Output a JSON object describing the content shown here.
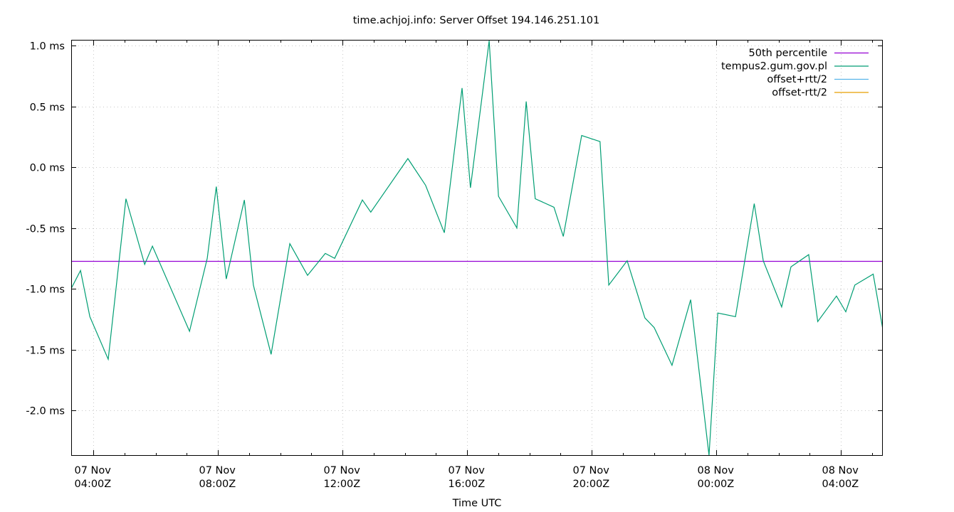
{
  "title": "time.achjoj.info: Server Offset 194.146.251.101",
  "xlabel": "Time UTC",
  "colors": {
    "median": "#9400d3",
    "offset": "#009e73",
    "offset_plus": "#56b4e9",
    "offset_minus": "#e69f00",
    "grid": "#c8c8c8",
    "axis": "#000000"
  },
  "legend": [
    {
      "label": "50th percentile",
      "color": "#9400d3"
    },
    {
      "label": "tempus2.gum.gov.pl",
      "color": "#009e73"
    },
    {
      "label": "offset+rtt/2",
      "color": "#56b4e9"
    },
    {
      "label": "offset-rtt/2",
      "color": "#e69f00"
    }
  ],
  "chart_data": {
    "type": "line",
    "title": "time.achjoj.info: Server Offset 194.146.251.101",
    "xlabel": "Time UTC",
    "ylabel": "",
    "ylim": [
      -2.4,
      1.05
    ],
    "y_unit": "ms",
    "grid": true,
    "legend_position": "top-right",
    "y_ticks": [
      {
        "value": 1.0,
        "label": "1.0 ms"
      },
      {
        "value": 0.5,
        "label": "0.5 ms"
      },
      {
        "value": 0.0,
        "label": "0.0 ms"
      },
      {
        "value": -0.5,
        "label": "-0.5 ms"
      },
      {
        "value": -1.0,
        "label": "-1.0 ms"
      },
      {
        "value": -1.5,
        "label": "-1.5 ms"
      },
      {
        "value": -2.0,
        "label": "-2.0 ms"
      }
    ],
    "x_range_hours": [
      3.3,
      29.35
    ],
    "x_ticks": [
      {
        "hour": 4,
        "line1": "07 Nov",
        "line2": "04:00Z"
      },
      {
        "hour": 8,
        "line1": "07 Nov",
        "line2": "08:00Z"
      },
      {
        "hour": 12,
        "line1": "07 Nov",
        "line2": "12:00Z"
      },
      {
        "hour": 16,
        "line1": "07 Nov",
        "line2": "16:00Z"
      },
      {
        "hour": 20,
        "line1": "07 Nov",
        "line2": "20:00Z"
      },
      {
        "hour": 24,
        "line1": "08 Nov",
        "line2": "00:00Z"
      },
      {
        "hour": 28,
        "line1": "08 Nov",
        "line2": "04:00Z"
      }
    ],
    "series": [
      {
        "name": "50th percentile",
        "color": "#9400d3",
        "constant": -0.77
      },
      {
        "name": "tempus2.gum.gov.pl",
        "color": "#009e73",
        "points": [
          [
            3.29,
            -1.0
          ],
          [
            3.59,
            -0.85
          ],
          [
            3.89,
            -1.23
          ],
          [
            4.48,
            -1.58
          ],
          [
            5.05,
            -0.26
          ],
          [
            5.65,
            -0.8
          ],
          [
            5.9,
            -0.65
          ],
          [
            7.09,
            -1.35
          ],
          [
            7.66,
            -0.75
          ],
          [
            7.95,
            -0.16
          ],
          [
            8.27,
            -0.92
          ],
          [
            8.85,
            -0.27
          ],
          [
            9.14,
            -0.97
          ],
          [
            9.71,
            -1.54
          ],
          [
            10.31,
            -0.63
          ],
          [
            10.88,
            -0.89
          ],
          [
            11.45,
            -0.71
          ],
          [
            11.75,
            -0.75
          ],
          [
            12.64,
            -0.27
          ],
          [
            12.91,
            -0.37
          ],
          [
            14.1,
            0.07
          ],
          [
            14.67,
            -0.15
          ],
          [
            15.27,
            -0.54
          ],
          [
            15.84,
            0.65
          ],
          [
            16.11,
            -0.17
          ],
          [
            16.71,
            1.04
          ],
          [
            17.01,
            -0.24
          ],
          [
            17.6,
            -0.5
          ],
          [
            17.9,
            0.54
          ],
          [
            18.19,
            -0.26
          ],
          [
            18.79,
            -0.33
          ],
          [
            19.09,
            -0.57
          ],
          [
            19.68,
            0.26
          ],
          [
            20.27,
            0.21
          ],
          [
            20.55,
            -0.97
          ],
          [
            21.14,
            -0.77
          ],
          [
            21.71,
            -1.24
          ],
          [
            22.01,
            -1.32
          ],
          [
            22.58,
            -1.63
          ],
          [
            23.18,
            -1.09
          ],
          [
            23.77,
            -2.37
          ],
          [
            24.05,
            -1.2
          ],
          [
            24.62,
            -1.23
          ],
          [
            25.22,
            -0.3
          ],
          [
            25.51,
            -0.77
          ],
          [
            26.1,
            -1.15
          ],
          [
            26.4,
            -0.82
          ],
          [
            26.97,
            -0.72
          ],
          [
            27.26,
            -1.27
          ],
          [
            27.86,
            -1.06
          ],
          [
            28.16,
            -1.19
          ],
          [
            28.45,
            -0.97
          ],
          [
            29.04,
            -0.88
          ],
          [
            29.34,
            -1.32
          ]
        ]
      },
      {
        "name": "offset+rtt/2",
        "color": "#56b4e9",
        "points": []
      },
      {
        "name": "offset-rtt/2",
        "color": "#e69f00",
        "points": []
      }
    ]
  }
}
